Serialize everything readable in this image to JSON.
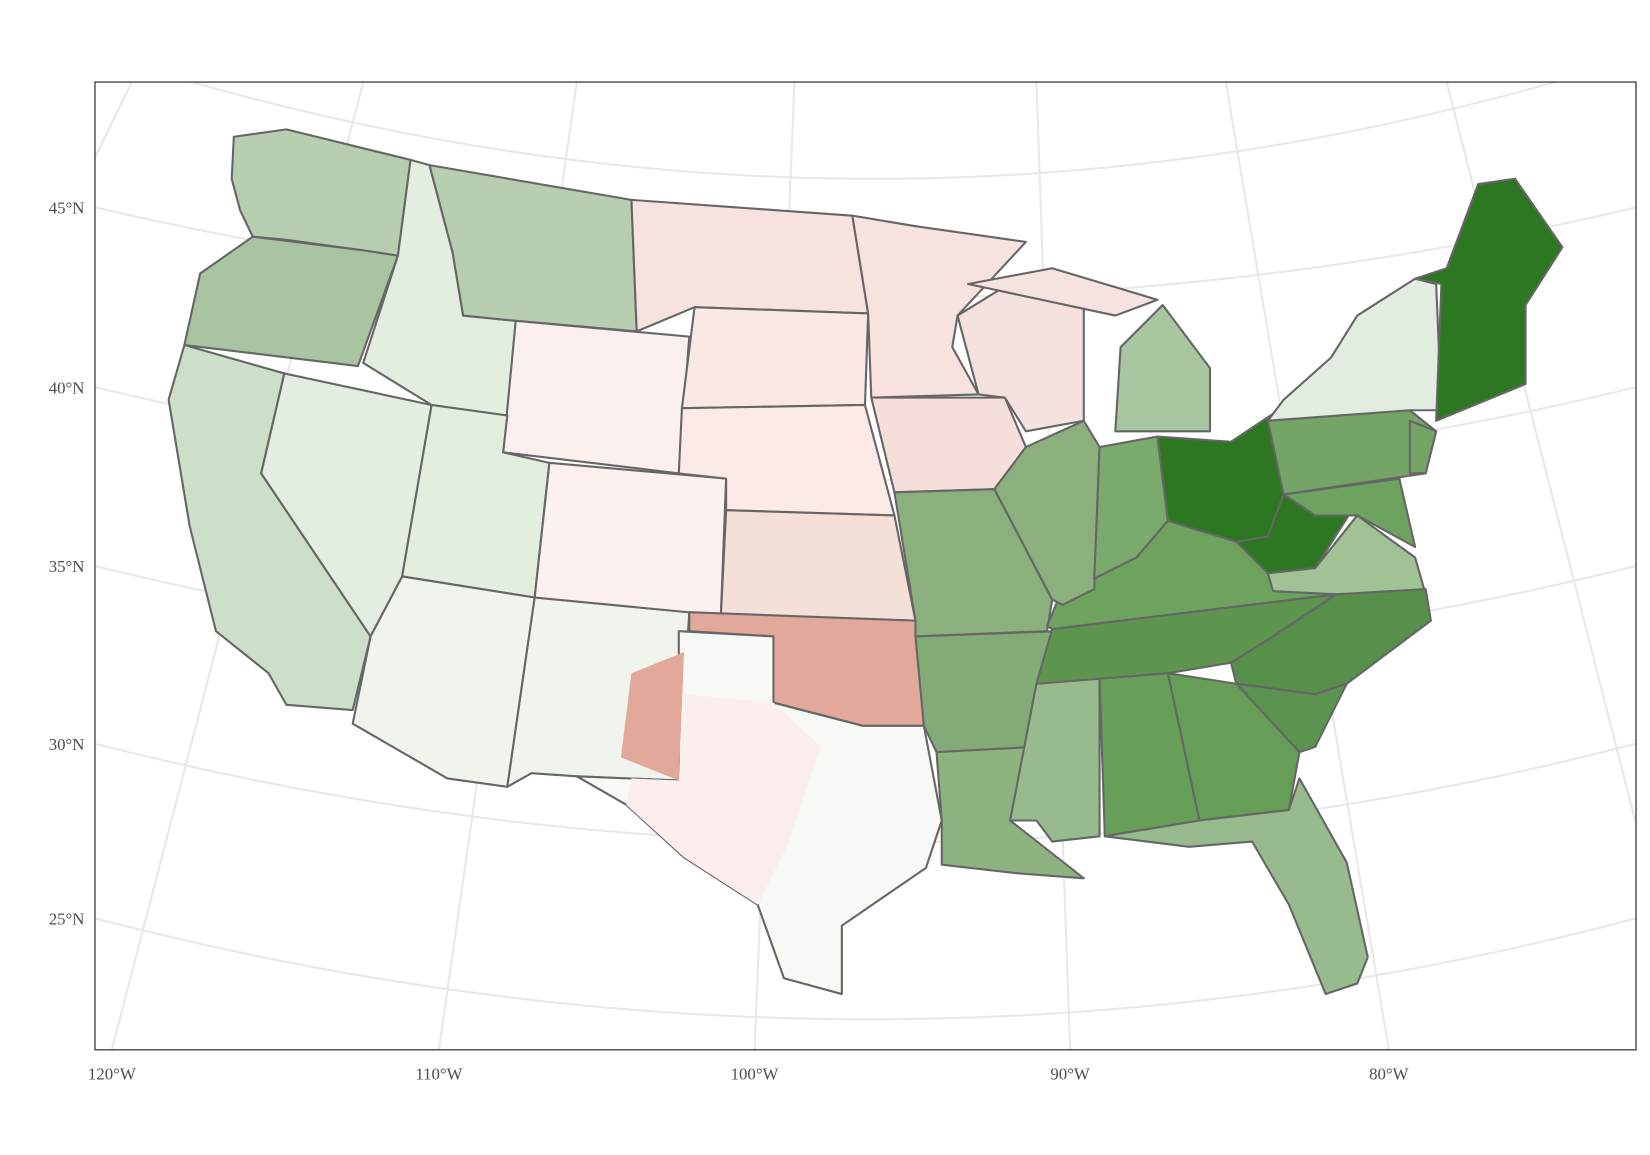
{
  "axes": {
    "y_labels": [
      "45°N",
      "40°N",
      "35°N",
      "30°N",
      "25°N"
    ],
    "x_labels": [
      "120°W",
      "110°W",
      "100°W",
      "90°W",
      "80°W"
    ]
  }
}
